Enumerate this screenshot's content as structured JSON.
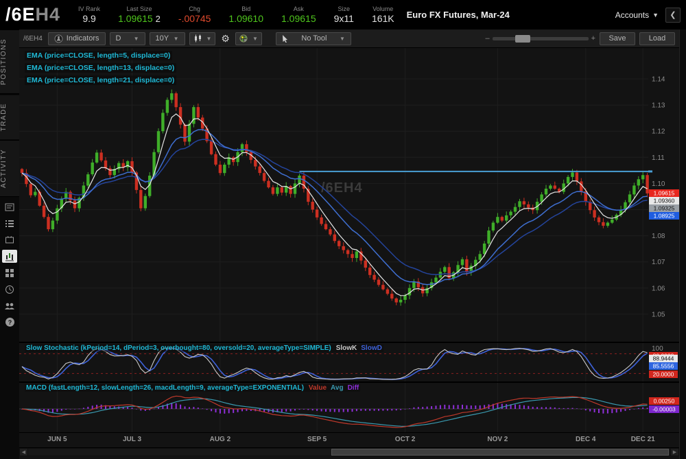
{
  "header": {
    "symbol": "/6E",
    "symbol_suffix": "H4",
    "fields": [
      {
        "label": "IV Rank",
        "value": "9.9",
        "color": "plain"
      },
      {
        "label": "Last Size",
        "value": "1.09615",
        "extra": "2",
        "color": "green"
      },
      {
        "label": "Chg",
        "value": "-.00745",
        "color": "red"
      },
      {
        "label": "Bid",
        "value": "1.09610",
        "color": "green"
      },
      {
        "label": "Ask",
        "value": "1.09615",
        "color": "green"
      },
      {
        "label": "Size",
        "value": "9x11",
        "color": "plain"
      },
      {
        "label": "Volume",
        "value": "161K",
        "color": "plain"
      }
    ],
    "instrument": "Euro FX Futures, Mar-24",
    "accounts_label": "Accounts",
    "collapse_icon": "❮"
  },
  "sidebar": {
    "tabs": [
      "POSITIONS",
      "TRADE",
      "ACTIVITY"
    ],
    "icons": [
      "watchlist-icon",
      "list-icon",
      "monitor-icon",
      "chart-icon",
      "grid-icon",
      "clock-icon",
      "community-icon",
      "help-icon"
    ],
    "active_icon": "chart-icon"
  },
  "toolbar": {
    "symbol_label": "/6EH4",
    "indicators_label": "Indicators",
    "timeframe": "D",
    "range": "10Y",
    "tool_label": "No Tool",
    "save_label": "Save",
    "load_label": "Load",
    "zoom_slider_pct": 32
  },
  "studies": {
    "price_labels": [
      "EMA (price=CLOSE, length=5, displace=0)",
      "EMA (price=CLOSE, length=13, displace=0)",
      "EMA (price=CLOSE, length=21, displace=0)"
    ],
    "stoch": {
      "label": "Slow Stochastic (kPeriod=14, dPeriod=3, overbought=80, oversold=20, averageType=SIMPLE)",
      "k_label": "SlowK",
      "d_label": "SlowD"
    },
    "macd": {
      "label": "MACD (fastLength=12, slowLength=26, macdLength=9, averageType=EXPONENTIAL)",
      "value_label": "Value",
      "avg_label": "Avg",
      "diff_label": "Diff"
    }
  },
  "chart_data": {
    "type": "candlestick",
    "watermark": "/6EH4",
    "price_ticks": [
      "1.14",
      "1.13",
      "1.12",
      "1.11",
      "1.10",
      "1.09",
      "1.08",
      "1.07",
      "1.06",
      "1.05"
    ],
    "closes": [
      1.104,
      1.0998,
      1.0955,
      1.0968,
      1.0915,
      1.0872,
      1.0825,
      1.0858,
      1.0905,
      1.0942,
      1.0968,
      1.0935,
      1.0905,
      1.0945,
      1.0992,
      1.1035,
      1.108,
      1.1118,
      1.1088,
      1.1058,
      1.1032,
      1.1055,
      1.1078,
      1.1062,
      1.1085,
      1.1042,
      1.0975,
      1.0905,
      1.0952,
      1.103,
      1.112,
      1.12,
      1.127,
      1.132,
      1.1345,
      1.1292,
      1.1225,
      1.116,
      1.1228,
      1.1292,
      1.1252,
      1.121,
      1.1162,
      1.1112,
      1.1072,
      1.104,
      1.1072,
      1.11,
      1.1082,
      1.112,
      1.115,
      1.112,
      1.109,
      1.1065,
      1.104,
      1.101,
      1.0985,
      1.096,
      1.0985,
      1.0965,
      1.099,
      1.096,
      1.1,
      1.103,
      1.098,
      1.093,
      1.09,
      1.087,
      1.0845,
      1.0825,
      1.0805,
      1.078,
      1.076,
      1.0745,
      1.073,
      1.0715,
      1.074,
      1.0705,
      1.0678,
      1.065,
      1.0632,
      1.0612,
      1.0595,
      1.0578,
      1.056,
      1.0545,
      1.0555,
      1.0572,
      1.06,
      1.0625,
      1.0603,
      1.058,
      1.06,
      1.0622,
      1.064,
      1.0662,
      1.068,
      1.0638,
      1.066,
      1.0688,
      1.071,
      1.0662,
      1.0685,
      1.0708,
      1.073,
      1.077,
      1.082,
      1.085,
      1.0872,
      1.0858,
      1.0878,
      1.0892,
      1.091,
      1.0932,
      1.092,
      1.0908,
      1.0898,
      1.093,
      1.0958,
      1.098,
      1.0992,
      1.098,
      1.0968,
      1.1,
      1.1025,
      1.1042,
      1.1008,
      1.097,
      1.093,
      1.0898,
      1.087,
      1.0852,
      1.0838,
      1.085,
      1.0862,
      1.088,
      1.09,
      1.0928,
      1.0958,
      1.0992,
      1.1016,
      1.1032,
      1.0962
    ],
    "x_ticks": [
      {
        "label": "JUN 5",
        "i": 8
      },
      {
        "label": "JUL 3",
        "i": 25
      },
      {
        "label": "AUG 2",
        "i": 45
      },
      {
        "label": "SEP 5",
        "i": 67
      },
      {
        "label": "OCT 2",
        "i": 87
      },
      {
        "label": "NOV 2",
        "i": 108
      },
      {
        "label": "DEC 4",
        "i": 128
      },
      {
        "label": "DEC 21",
        "i": 141
      }
    ],
    "hline": {
      "price": 1.1046,
      "from_index": 63
    },
    "price_badges": [
      {
        "text": "1.09615",
        "bg": "#e8261d",
        "fg": "#ffffff",
        "y": 206
      },
      {
        "text": "1.09360",
        "bg": "#e8e8e8",
        "fg": "#111111",
        "y": 217
      },
      {
        "text": "1.09325",
        "bg": "#9aa0a6",
        "fg": "#111111",
        "y": 228
      },
      {
        "text": "1.08925",
        "bg": "#1f5de0",
        "fg": "#ffffff",
        "y": 239
      }
    ],
    "stoch": {
      "overbought": 80,
      "oversold": 20,
      "axis_top_label": "100",
      "badges": [
        {
          "text": "80.0000",
          "bg": "#d1261d",
          "fg": "#ffffff",
          "y": 13
        },
        {
          "text": "88.9444",
          "bg": "#e8e8e8",
          "fg": "#111111",
          "y": 17
        },
        {
          "text": "85.5556",
          "bg": "#2f66e0",
          "fg": "#ffffff",
          "y": 28
        },
        {
          "text": "20.0000",
          "bg": "#d1261d",
          "fg": "#ffffff",
          "y": 40
        }
      ]
    },
    "macd_badges": [
      {
        "text": "0.00250",
        "bg": "#d1261d",
        "fg": "#ffffff",
        "y": 21
      },
      {
        "text": "-0.00003",
        "bg": "#7d26cd",
        "fg": "#ffffff",
        "y": 33
      }
    ],
    "colors": {
      "up": "#3fae29",
      "down": "#cc2f21",
      "ema5": "#e6e6e6",
      "ema13": "#3f6fd1",
      "ema21": "#24449c",
      "slowk": "#c9c9c9",
      "slowd": "#3e62d9",
      "macd_value": "#c0392b",
      "macd_avg": "#3a9ab0",
      "macd_diff": "#8f2fd9",
      "hline": "#4a9fd4",
      "grid": "#1e1e1e",
      "dashed": "#8b2020",
      "axis_text": "#8e8e8e",
      "watermark": "#3b3b3b",
      "zero": "#3a3a3a"
    }
  }
}
